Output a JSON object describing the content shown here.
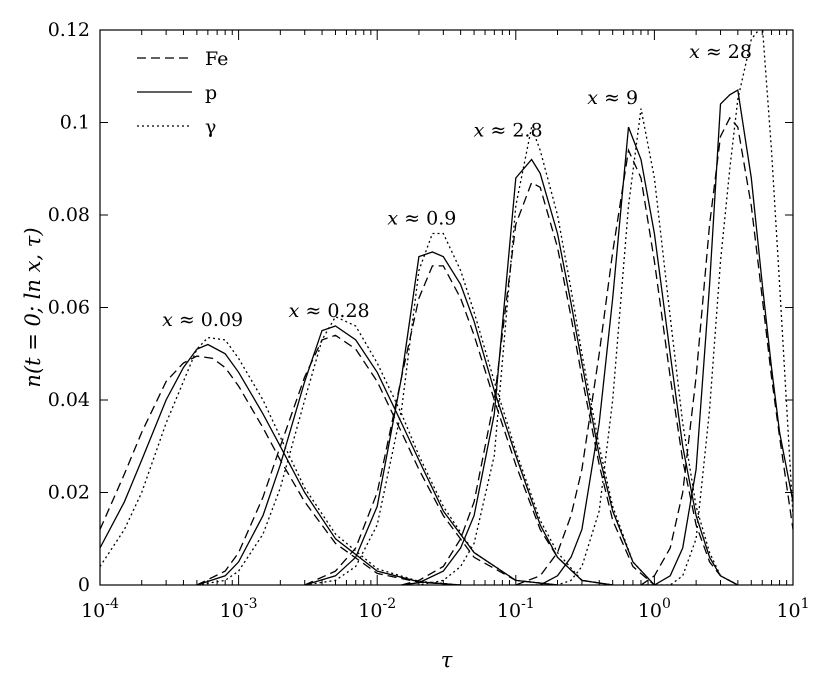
{
  "chart_data": {
    "type": "line",
    "xlabel": "τ",
    "ylabel": "n(t = 0; ln x, τ)",
    "xscale": "log",
    "xlim": [
      0.0001,
      10
    ],
    "ylim": [
      0,
      0.12
    ],
    "grid": false,
    "legend_position": "top-left",
    "x_ticks": [
      {
        "value": 0.0001,
        "base": "10",
        "exp": "-4"
      },
      {
        "value": 0.001,
        "base": "10",
        "exp": "-3"
      },
      {
        "value": 0.01,
        "base": "10",
        "exp": "-2"
      },
      {
        "value": 0.1,
        "base": "10",
        "exp": "-1"
      },
      {
        "value": 1,
        "base": "10",
        "exp": "0"
      },
      {
        "value": 10,
        "base": "10",
        "exp": "1"
      }
    ],
    "y_ticks": [
      {
        "value": 0,
        "label": "0"
      },
      {
        "value": 0.02,
        "label": "0.02"
      },
      {
        "value": 0.04,
        "label": "0.04"
      },
      {
        "value": 0.06,
        "label": "0.06"
      },
      {
        "value": 0.08,
        "label": "0.08"
      },
      {
        "value": 0.1,
        "label": "0.1"
      },
      {
        "value": 0.12,
        "label": "0.12"
      }
    ],
    "legend": [
      {
        "name": "Fe",
        "style": "dashed"
      },
      {
        "name": "p",
        "style": "solid"
      },
      {
        "name": "γ",
        "style": "dotted"
      }
    ],
    "annotations": [
      {
        "text": "x ≈ 0.09",
        "x": 0.00055,
        "y": 0.056
      },
      {
        "text": "x ≈ 0.28",
        "x": 0.0045,
        "y": 0.058
      },
      {
        "text": "x ≈ 0.9",
        "x": 0.021,
        "y": 0.078
      },
      {
        "text": "x ≈ 2.8",
        "x": 0.088,
        "y": 0.097
      },
      {
        "text": "x ≈ 9",
        "x": 0.5,
        "y": 0.104
      },
      {
        "text": "x ≈ 28",
        "x": 3.0,
        "y": 0.114
      }
    ],
    "series": [
      {
        "name": "Fe",
        "x_annot": "x ≈ 0.09",
        "style": "dashed",
        "x": [
          0.0001,
          0.00015,
          0.0002,
          0.0003,
          0.0004,
          0.0005,
          0.00065,
          0.0008,
          0.001,
          0.0015,
          0.002,
          0.003,
          0.005,
          0.01,
          0.02,
          0.04
        ],
        "values": [
          0.012,
          0.024,
          0.033,
          0.044,
          0.048,
          0.0495,
          0.049,
          0.047,
          0.043,
          0.034,
          0.027,
          0.018,
          0.009,
          0.0025,
          0.0006,
          0.0
        ]
      },
      {
        "name": "p",
        "x_annot": "x ≈ 0.09",
        "style": "solid",
        "x": [
          0.0001,
          0.00015,
          0.0002,
          0.0003,
          0.0004,
          0.0005,
          0.0006,
          0.0008,
          0.001,
          0.0015,
          0.002,
          0.003,
          0.005,
          0.01,
          0.02,
          0.04
        ],
        "values": [
          0.008,
          0.018,
          0.027,
          0.04,
          0.047,
          0.051,
          0.052,
          0.05,
          0.046,
          0.037,
          0.03,
          0.02,
          0.01,
          0.003,
          0.0007,
          0.0
        ]
      },
      {
        "name": "γ",
        "x_annot": "x ≈ 0.09",
        "style": "dotted",
        "x": [
          0.0001,
          0.00015,
          0.0002,
          0.0003,
          0.0004,
          0.0005,
          0.0006,
          0.0008,
          0.001,
          0.0015,
          0.002,
          0.003,
          0.005,
          0.01,
          0.02,
          0.04
        ],
        "values": [
          0.004,
          0.012,
          0.02,
          0.035,
          0.044,
          0.051,
          0.0535,
          0.053,
          0.049,
          0.04,
          0.032,
          0.021,
          0.011,
          0.0035,
          0.0008,
          0.0
        ]
      },
      {
        "name": "Fe",
        "x_annot": "x ≈ 0.28",
        "style": "dashed",
        "x": [
          0.0005,
          0.0008,
          0.001,
          0.0015,
          0.002,
          0.003,
          0.004,
          0.005,
          0.007,
          0.01,
          0.015,
          0.02,
          0.03,
          0.05,
          0.1,
          0.2
        ],
        "values": [
          0.0,
          0.003,
          0.007,
          0.019,
          0.03,
          0.045,
          0.053,
          0.054,
          0.051,
          0.044,
          0.033,
          0.025,
          0.015,
          0.006,
          0.001,
          0.0
        ]
      },
      {
        "name": "p",
        "x_annot": "x ≈ 0.28",
        "style": "solid",
        "x": [
          0.0005,
          0.0008,
          0.001,
          0.0015,
          0.002,
          0.003,
          0.004,
          0.005,
          0.007,
          0.01,
          0.015,
          0.02,
          0.03,
          0.05,
          0.1,
          0.2
        ],
        "values": [
          0.0,
          0.002,
          0.005,
          0.015,
          0.026,
          0.044,
          0.055,
          0.056,
          0.053,
          0.046,
          0.035,
          0.027,
          0.016,
          0.007,
          0.001,
          0.0
        ]
      },
      {
        "name": "γ",
        "x_annot": "x ≈ 0.28",
        "style": "dotted",
        "x": [
          0.0005,
          0.0008,
          0.001,
          0.0015,
          0.002,
          0.003,
          0.004,
          0.005,
          0.007,
          0.01,
          0.015,
          0.02,
          0.03,
          0.05,
          0.1,
          0.2
        ],
        "values": [
          0.0,
          0.001,
          0.003,
          0.011,
          0.021,
          0.04,
          0.053,
          0.058,
          0.056,
          0.048,
          0.037,
          0.028,
          0.017,
          0.007,
          0.001,
          0.0
        ]
      },
      {
        "name": "Fe",
        "x_annot": "x ≈ 0.9",
        "style": "dashed",
        "x": [
          0.003,
          0.005,
          0.007,
          0.01,
          0.015,
          0.02,
          0.025,
          0.03,
          0.04,
          0.05,
          0.07,
          0.1,
          0.15,
          0.2,
          0.3,
          0.5
        ],
        "values": [
          0.0,
          0.003,
          0.008,
          0.02,
          0.045,
          0.062,
          0.069,
          0.069,
          0.062,
          0.054,
          0.04,
          0.026,
          0.012,
          0.006,
          0.001,
          0.0
        ]
      },
      {
        "name": "p",
        "x_annot": "x ≈ 0.9",
        "style": "solid",
        "x": [
          0.003,
          0.005,
          0.007,
          0.01,
          0.015,
          0.02,
          0.025,
          0.03,
          0.04,
          0.05,
          0.07,
          0.1,
          0.15,
          0.2,
          0.3,
          0.5
        ],
        "values": [
          0.0,
          0.002,
          0.006,
          0.017,
          0.045,
          0.071,
          0.072,
          0.071,
          0.065,
          0.057,
          0.042,
          0.028,
          0.013,
          0.006,
          0.001,
          0.0
        ]
      },
      {
        "name": "γ",
        "x_annot": "x ≈ 0.9",
        "style": "dotted",
        "x": [
          0.003,
          0.005,
          0.007,
          0.01,
          0.015,
          0.02,
          0.025,
          0.03,
          0.04,
          0.05,
          0.07,
          0.1,
          0.15,
          0.2,
          0.3,
          0.5
        ],
        "values": [
          0.0,
          0.001,
          0.004,
          0.013,
          0.038,
          0.068,
          0.076,
          0.076,
          0.068,
          0.059,
          0.044,
          0.029,
          0.014,
          0.007,
          0.001,
          0.0
        ]
      },
      {
        "name": "Fe",
        "x_annot": "x ≈ 2.8",
        "style": "dashed",
        "x": [
          0.015,
          0.02,
          0.03,
          0.04,
          0.05,
          0.07,
          0.1,
          0.13,
          0.15,
          0.2,
          0.25,
          0.3,
          0.4,
          0.5,
          0.7,
          1.0
        ],
        "values": [
          0.0,
          0.001,
          0.004,
          0.01,
          0.018,
          0.04,
          0.078,
          0.087,
          0.086,
          0.073,
          0.058,
          0.045,
          0.026,
          0.014,
          0.004,
          0.0
        ]
      },
      {
        "name": "p",
        "x_annot": "x ≈ 2.8",
        "style": "solid",
        "x": [
          0.015,
          0.02,
          0.03,
          0.04,
          0.05,
          0.07,
          0.1,
          0.13,
          0.15,
          0.2,
          0.25,
          0.3,
          0.4,
          0.5,
          0.7,
          1.0
        ],
        "values": [
          0.0,
          0.0005,
          0.003,
          0.008,
          0.015,
          0.037,
          0.088,
          0.092,
          0.089,
          0.076,
          0.061,
          0.048,
          0.028,
          0.016,
          0.005,
          0.0
        ]
      },
      {
        "name": "γ",
        "x_annot": "x ≈ 2.8",
        "style": "dotted",
        "x": [
          0.015,
          0.02,
          0.03,
          0.04,
          0.05,
          0.07,
          0.1,
          0.13,
          0.15,
          0.2,
          0.25,
          0.3,
          0.4,
          0.5,
          0.7,
          1.0
        ],
        "values": [
          0.0,
          0.0,
          0.001,
          0.004,
          0.009,
          0.028,
          0.082,
          0.099,
          0.094,
          0.08,
          0.064,
          0.05,
          0.03,
          0.017,
          0.005,
          0.0
        ]
      },
      {
        "name": "Fe",
        "x_annot": "x ≈ 9",
        "style": "dashed",
        "x": [
          0.1,
          0.15,
          0.2,
          0.25,
          0.3,
          0.4,
          0.5,
          0.65,
          0.8,
          1.0,
          1.3,
          1.6,
          2.0,
          2.5,
          3.0,
          4.0
        ],
        "values": [
          0.0,
          0.002,
          0.007,
          0.015,
          0.025,
          0.05,
          0.072,
          0.094,
          0.088,
          0.07,
          0.045,
          0.027,
          0.013,
          0.005,
          0.002,
          0.0
        ]
      },
      {
        "name": "p",
        "x_annot": "x ≈ 9",
        "style": "solid",
        "x": [
          0.1,
          0.15,
          0.2,
          0.25,
          0.3,
          0.4,
          0.5,
          0.65,
          0.8,
          1.0,
          1.3,
          1.6,
          2.0,
          2.5,
          3.0,
          4.0
        ],
        "values": [
          0.0,
          0.0,
          0.002,
          0.006,
          0.012,
          0.035,
          0.062,
          0.099,
          0.092,
          0.076,
          0.05,
          0.03,
          0.015,
          0.006,
          0.002,
          0.0
        ]
      },
      {
        "name": "γ",
        "x_annot": "x ≈ 9",
        "style": "dotted",
        "x": [
          0.1,
          0.15,
          0.2,
          0.25,
          0.3,
          0.4,
          0.5,
          0.65,
          0.8,
          1.0,
          1.3,
          1.6,
          2.0,
          2.5,
          3.0,
          4.0
        ],
        "values": [
          0.0,
          0.0,
          0.0,
          0.001,
          0.004,
          0.016,
          0.04,
          0.082,
          0.103,
          0.088,
          0.058,
          0.035,
          0.017,
          0.007,
          0.002,
          0.0
        ]
      },
      {
        "name": "Fe",
        "x_annot": "x ≈ 28",
        "style": "dashed",
        "x": [
          0.8,
          1.0,
          1.3,
          1.6,
          2.0,
          2.5,
          3.0,
          3.5,
          4.0,
          5.0,
          6.0,
          7.0,
          8.0,
          10.0
        ],
        "values": [
          0.0,
          0.002,
          0.008,
          0.02,
          0.045,
          0.078,
          0.097,
          0.101,
          0.099,
          0.082,
          0.062,
          0.045,
          0.032,
          0.012
        ]
      },
      {
        "name": "p",
        "x_annot": "x ≈ 28",
        "style": "solid",
        "x": [
          0.8,
          1.0,
          1.3,
          1.6,
          2.0,
          2.5,
          3.0,
          3.5,
          4.0,
          5.0,
          6.0,
          7.0,
          8.0,
          10.0
        ],
        "values": [
          0.0,
          0.0,
          0.002,
          0.008,
          0.025,
          0.065,
          0.104,
          0.106,
          0.107,
          0.088,
          0.065,
          0.047,
          0.033,
          0.018
        ]
      },
      {
        "name": "γ",
        "x_annot": "x ≈ 28",
        "style": "dotted",
        "x": [
          0.8,
          1.0,
          1.3,
          1.6,
          2.0,
          2.5,
          3.0,
          3.5,
          4.0,
          5.0,
          6.0,
          7.0,
          8.0,
          10.0
        ],
        "values": [
          0.0,
          0.0,
          0.0,
          0.002,
          0.01,
          0.038,
          0.07,
          0.09,
          0.105,
          0.118,
          0.121,
          0.094,
          0.065,
          0.015
        ]
      }
    ]
  }
}
